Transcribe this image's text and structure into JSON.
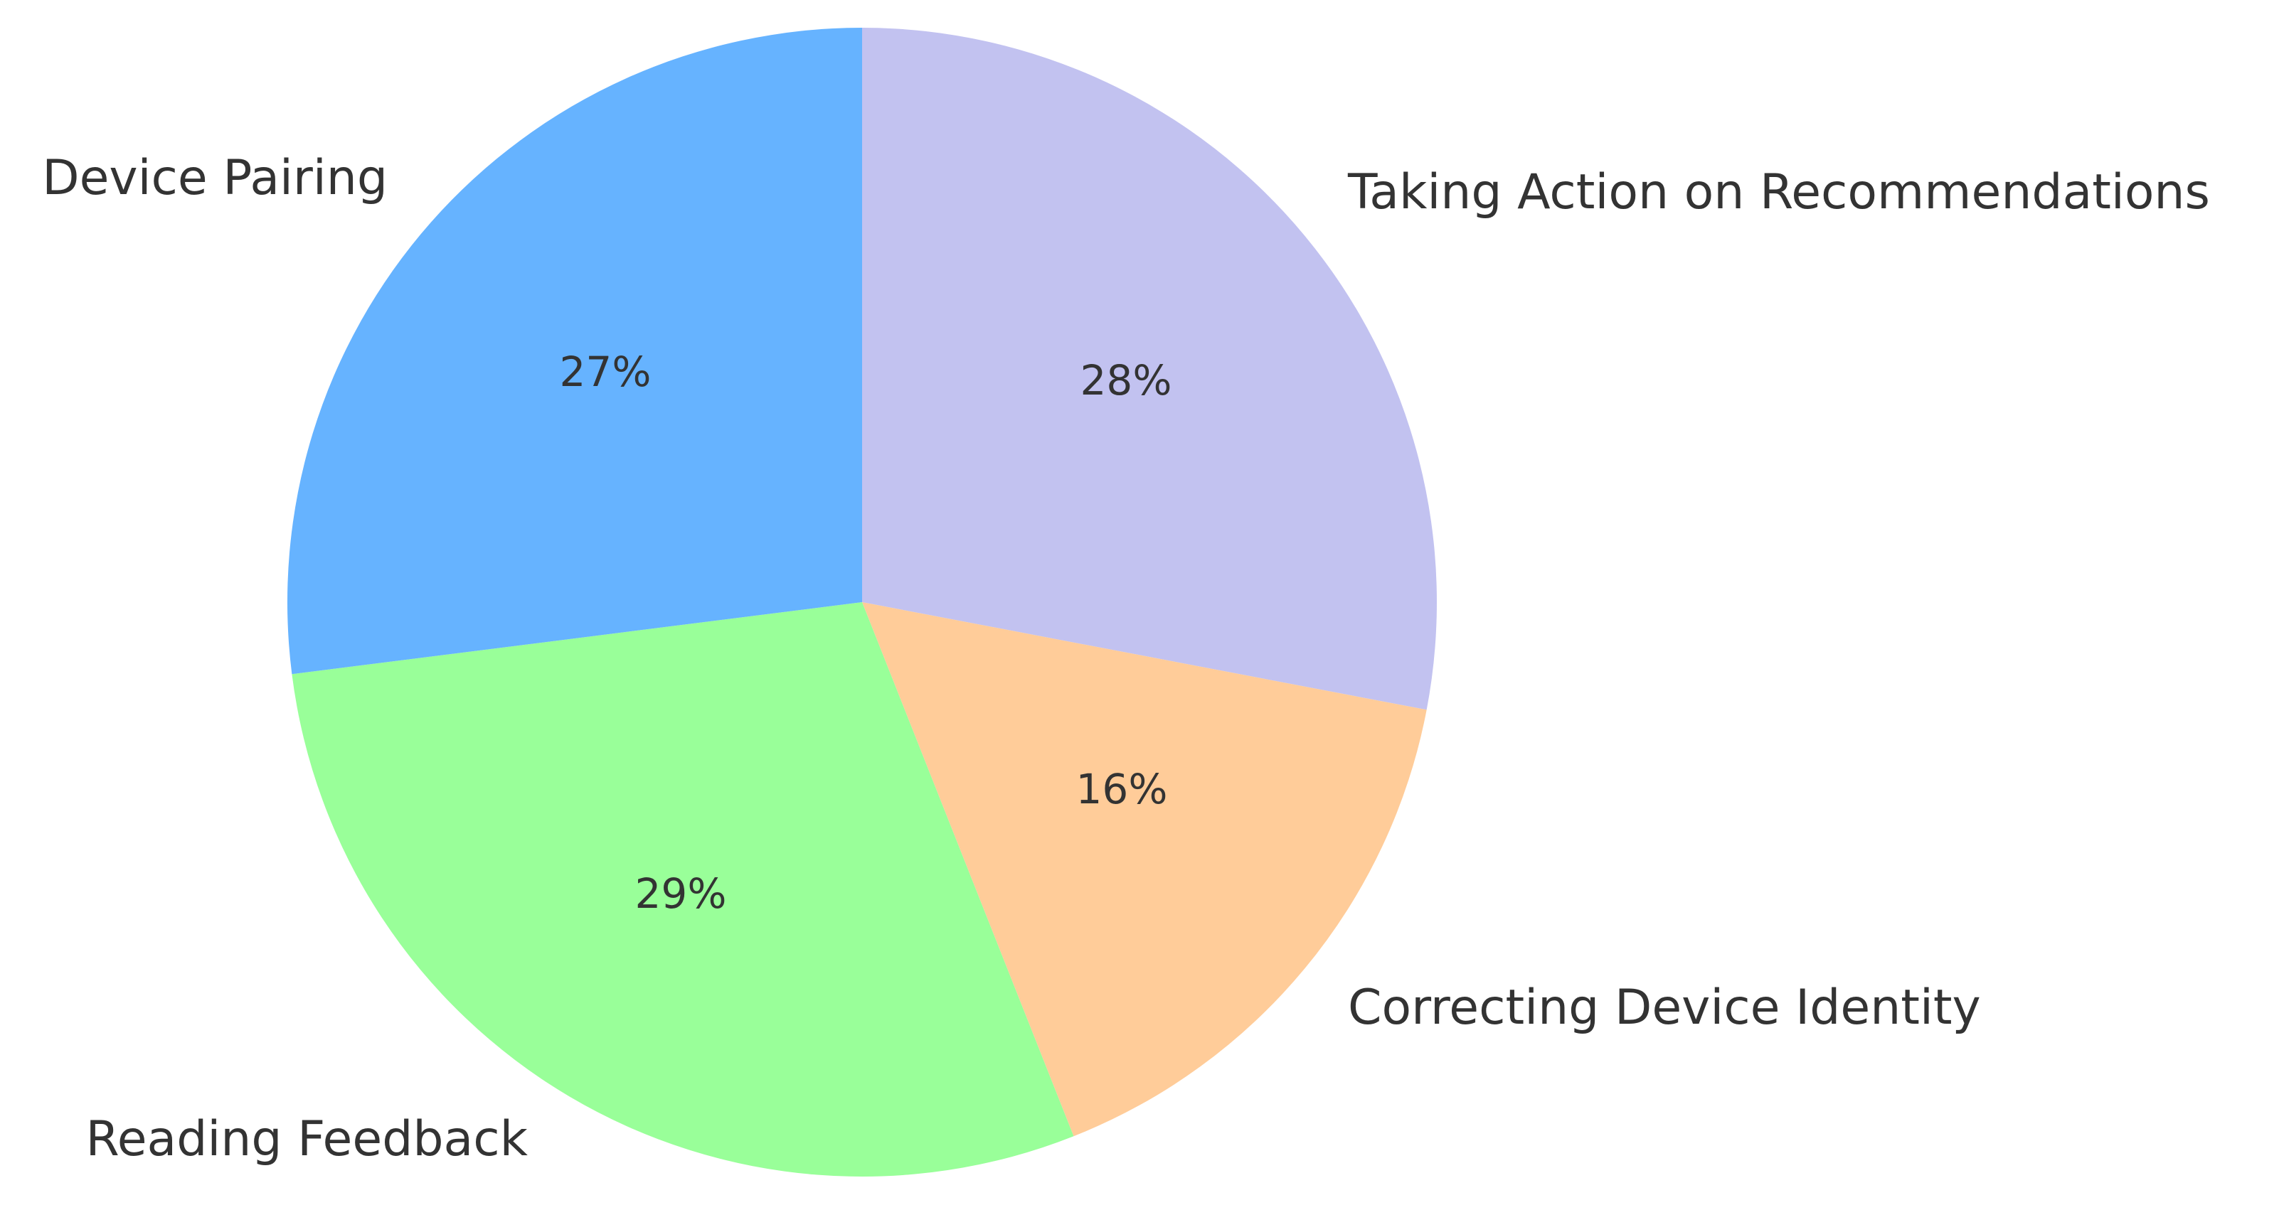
{
  "chart_data": {
    "type": "pie",
    "title": "",
    "categories": [
      "Taking Action on Recommendations",
      "Correcting Device Identity",
      "Reading Feedback",
      "Device Pairing"
    ],
    "values": [
      28,
      16,
      29,
      27
    ],
    "value_labels": [
      "28%",
      "16%",
      "29%",
      "27%"
    ],
    "colors": [
      "#c2c2f0",
      "#ffcc99",
      "#99ff99",
      "#66b3ff"
    ],
    "start_angle": "90 degrees (12 o'clock)",
    "direction": "clockwise",
    "legend": "none"
  }
}
